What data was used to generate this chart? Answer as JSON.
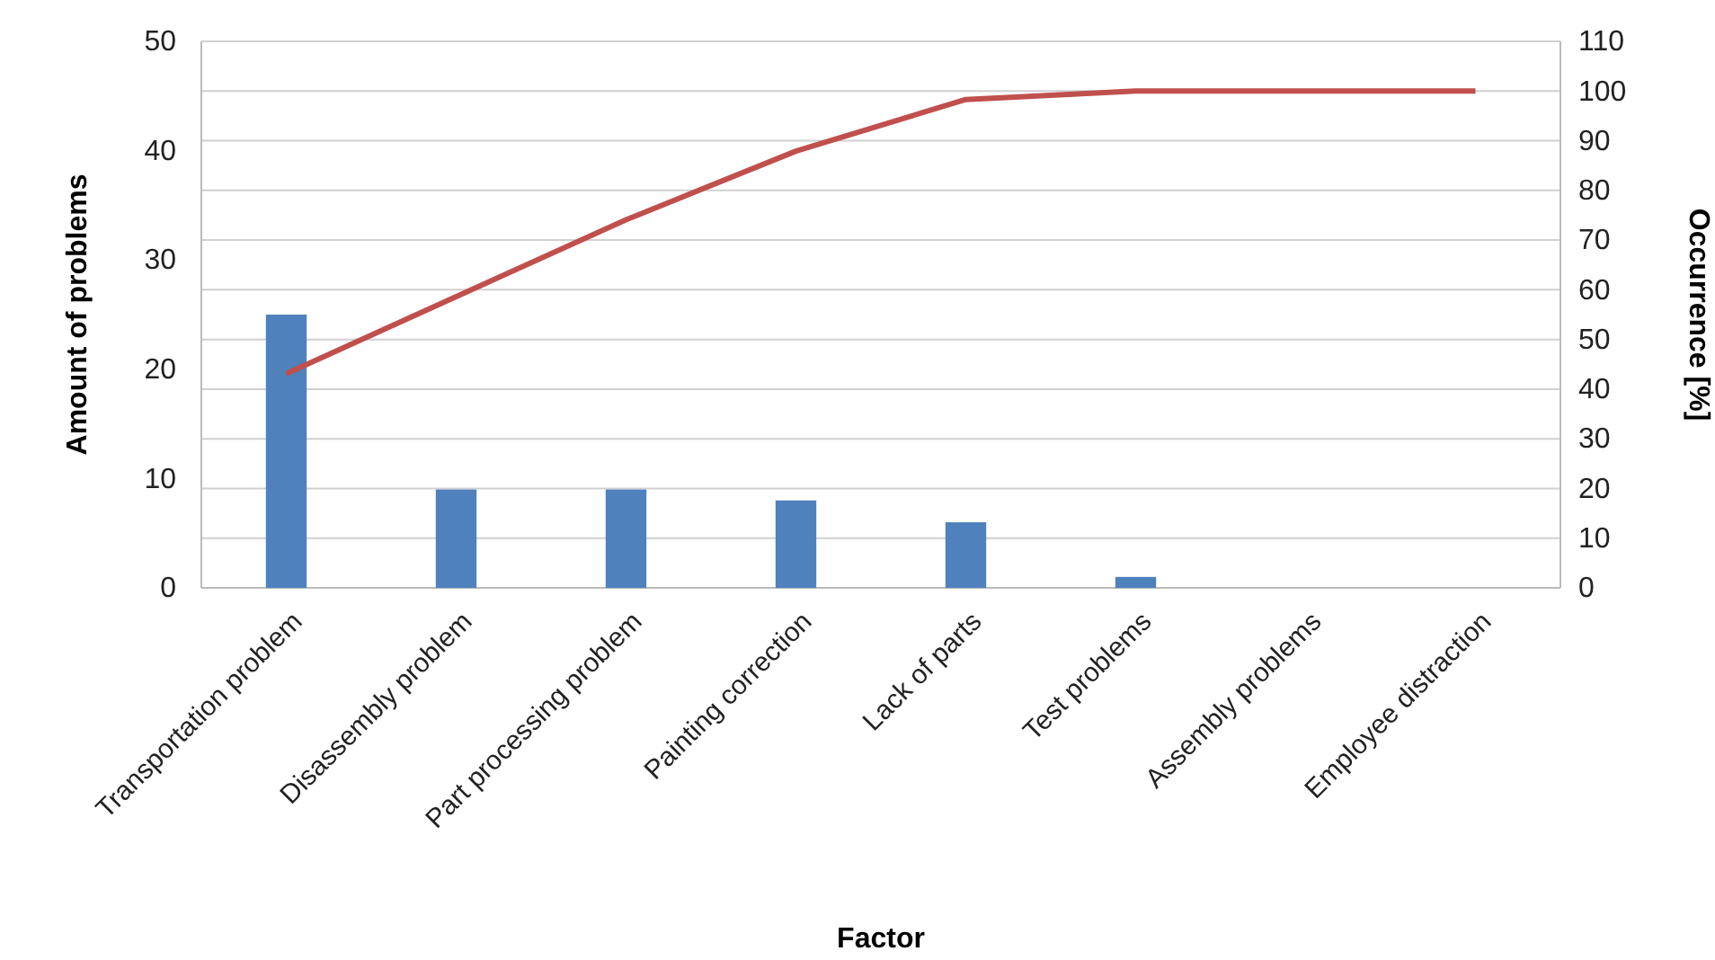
{
  "chart_data": {
    "type": "bar",
    "xlabel": "Factor",
    "ylabel": "Amount of problems",
    "y2label": "Occurrence [%]",
    "categories": [
      "Transportation problem",
      "Disassembly problem",
      "Part processing problem",
      "Painting correction",
      "Lack of parts",
      "Test problems",
      "Assembly problems",
      "Employee distraction"
    ],
    "series": [
      {
        "color": "#4f81bd",
        "values": [
          25,
          9,
          9,
          8,
          6,
          1,
          0,
          0
        ]
      },
      {
        "type": "line",
        "axis": "y2",
        "color": "#c0504d",
        "values": [
          43.1,
          58.6,
          74.1,
          87.9,
          98.3,
          100,
          100,
          100
        ]
      }
    ],
    "ylim": [
      0,
      50
    ],
    "yticks": [
      0,
      10,
      20,
      30,
      40,
      50
    ],
    "y2lim": [
      0,
      110
    ],
    "y2ticks": [
      0,
      10,
      20,
      30,
      40,
      50,
      60,
      70,
      80,
      90,
      100,
      110
    ],
    "grid": true
  }
}
